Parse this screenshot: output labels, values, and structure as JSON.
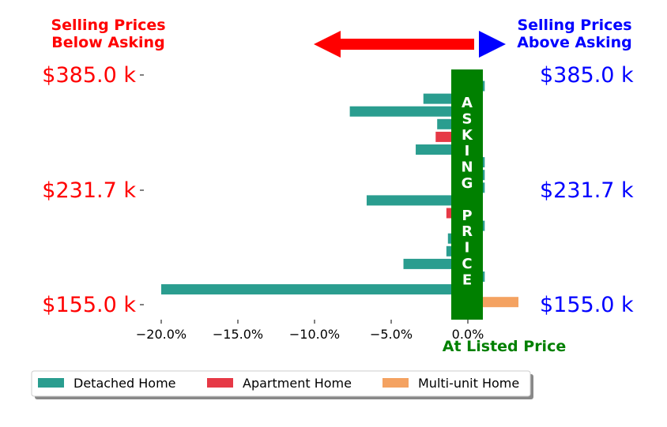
{
  "header": {
    "left_title": [
      "Selling Prices",
      "Below Asking"
    ],
    "right_title": [
      "Selling Prices",
      "Above Asking"
    ],
    "left_color": "#ff0000",
    "right_color": "#0000ff"
  },
  "asking_band": {
    "label_letters": [
      "A",
      "S",
      "K",
      "I",
      "N",
      "G",
      "",
      "P",
      "R",
      "I",
      "C",
      "E"
    ],
    "color": "#008000"
  },
  "bottom_label": "At Listed Price",
  "chart_data": {
    "type": "bar",
    "orientation": "horizontal",
    "x_ticks": [
      "−20.0%",
      "−15.0%",
      "−10.0%",
      "−5.0%",
      "0.0%"
    ],
    "x_tick_values": [
      -20,
      -15,
      -10,
      -5,
      0
    ],
    "xlim": [
      -21.5,
      3.4
    ],
    "y_tick_labels_left": [
      "$385.0 k",
      "$231.7 k",
      "$155.0 k"
    ],
    "y_tick_labels_right": [
      "$385.0 k",
      "$231.7 k",
      "$155.0 k"
    ],
    "legend_position": "bottom",
    "series": [
      {
        "name": "Detached Home",
        "color": "#2a9d8f"
      },
      {
        "name": "Apartment Home",
        "color": "#e63946"
      },
      {
        "name": "Multi-unit Home",
        "color": "#f4a261"
      }
    ],
    "bars": [
      {
        "series": "Detached Home",
        "value": 1.1
      },
      {
        "series": "Detached Home",
        "value": -2.9
      },
      {
        "series": "Detached Home",
        "value": -7.7
      },
      {
        "series": "Detached Home",
        "value": -2.0
      },
      {
        "series": "Apartment Home",
        "value": -2.1
      },
      {
        "series": "Detached Home",
        "value": -3.4
      },
      {
        "series": "Detached Home",
        "value": 1.1
      },
      {
        "series": "Detached Home",
        "value": 1.1
      },
      {
        "series": "Detached Home",
        "value": 1.1
      },
      {
        "series": "Detached Home",
        "value": -6.6
      },
      {
        "series": "Apartment Home",
        "value": -1.4
      },
      {
        "series": "Detached Home",
        "value": 1.1
      },
      {
        "series": "Detached Home",
        "value": -1.3
      },
      {
        "series": "Detached Home",
        "value": -1.4
      },
      {
        "series": "Detached Home",
        "value": -4.2
      },
      {
        "series": "Detached Home",
        "value": 1.1
      },
      {
        "series": "Detached Home",
        "value": -20.0
      },
      {
        "series": "Multi-unit Home",
        "value": 3.3
      }
    ]
  }
}
